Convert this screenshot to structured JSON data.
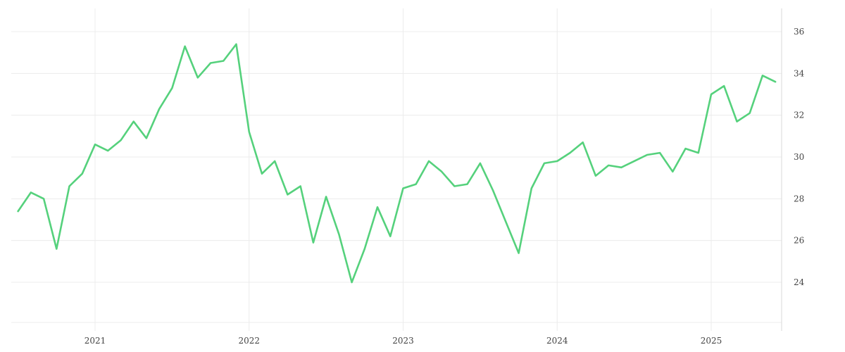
{
  "chart_data": {
    "type": "line",
    "title": "",
    "xlabel": "",
    "ylabel": "",
    "x_tick_labels": [
      "2021",
      "2022",
      "2023",
      "2024",
      "2025"
    ],
    "y_tick_labels": [
      "24",
      "26",
      "28",
      "30",
      "32",
      "34",
      "36"
    ],
    "y_ticks": [
      24,
      26,
      28,
      30,
      32,
      34,
      36
    ],
    "ylim": [
      22,
      37
    ],
    "xlim": [
      "2020-07",
      "2025-07"
    ],
    "y_axis_position": "right",
    "grid": true,
    "legend": "none",
    "line_color": "#55d17c",
    "series": [
      {
        "x": [
          "2020-07",
          "2020-08",
          "2020-09",
          "2020-10",
          "2020-11",
          "2020-12",
          "2021-01",
          "2021-02",
          "2021-03",
          "2021-04",
          "2021-05",
          "2021-06",
          "2021-07",
          "2021-08",
          "2021-09",
          "2021-10",
          "2021-11",
          "2021-12",
          "2022-01",
          "2022-02",
          "2022-03",
          "2022-04",
          "2022-05",
          "2022-06",
          "2022-07",
          "2022-08",
          "2022-09",
          "2022-10",
          "2022-11",
          "2022-12",
          "2023-01",
          "2023-02",
          "2023-03",
          "2023-04",
          "2023-05",
          "2023-06",
          "2023-07",
          "2023-08",
          "2023-09",
          "2023-10",
          "2023-11",
          "2023-12",
          "2024-01",
          "2024-02",
          "2024-03",
          "2024-04",
          "2024-05",
          "2024-06",
          "2024-07",
          "2024-08",
          "2024-09",
          "2024-10",
          "2024-11",
          "2024-12",
          "2025-01",
          "2025-02",
          "2025-03",
          "2025-04",
          "2025-05",
          "2025-06"
        ],
        "values": [
          27.4,
          28.3,
          28.0,
          25.6,
          28.6,
          29.2,
          30.6,
          30.3,
          30.8,
          31.7,
          30.9,
          32.3,
          33.3,
          35.3,
          33.8,
          34.5,
          34.6,
          35.4,
          31.2,
          29.2,
          29.8,
          28.2,
          28.6,
          25.9,
          28.1,
          26.3,
          24.0,
          25.6,
          27.6,
          26.2,
          28.5,
          28.7,
          29.8,
          29.3,
          28.6,
          28.7,
          29.7,
          28.4,
          26.9,
          25.4,
          28.5,
          29.7,
          29.8,
          30.2,
          30.7,
          29.1,
          29.6,
          29.5,
          29.8,
          30.1,
          30.2,
          29.3,
          30.4,
          30.2,
          33.0,
          33.4,
          31.7,
          32.1,
          33.9,
          33.6
        ]
      }
    ]
  }
}
